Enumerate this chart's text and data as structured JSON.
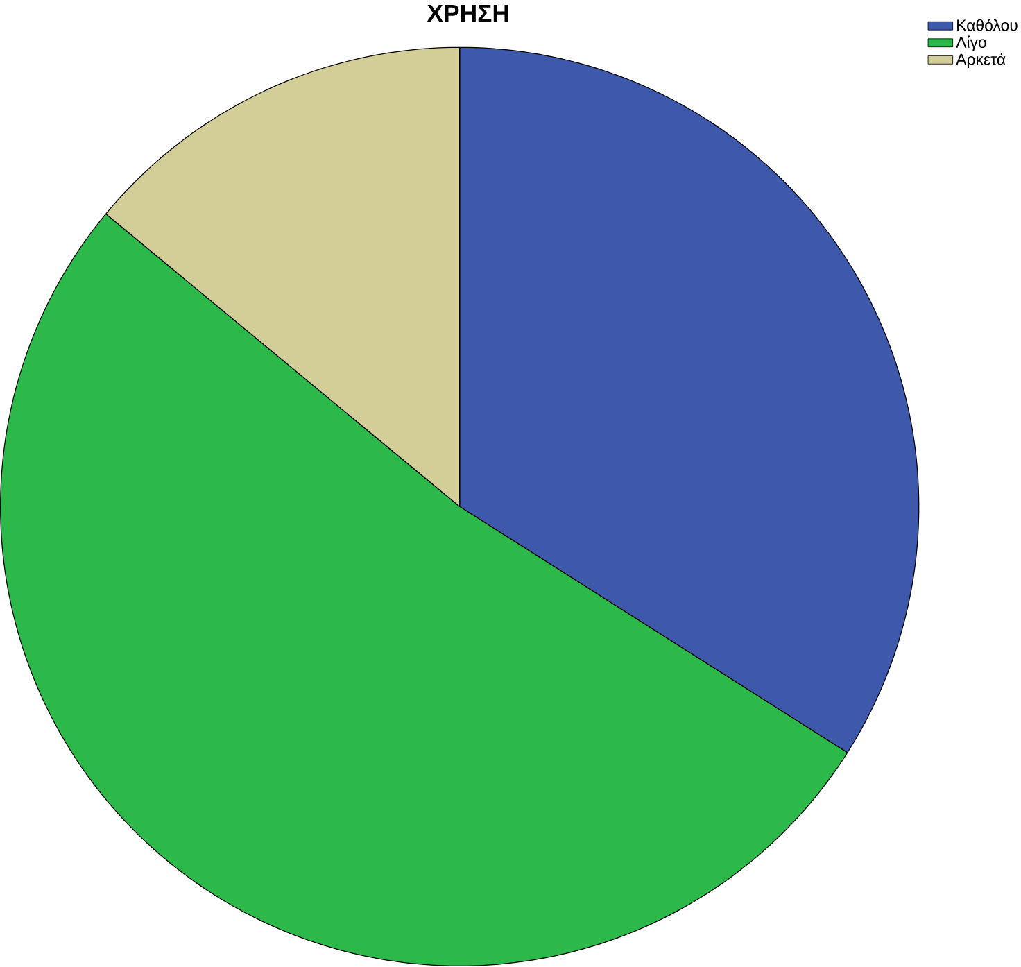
{
  "chart_data": {
    "type": "pie",
    "title": "ΧΡΗΣΗ",
    "categories": [
      "Καθόλου",
      "Λίγο",
      "Αρκετά"
    ],
    "values": [
      34,
      52,
      14
    ],
    "colors": [
      "#3e58ac",
      "#2db84a",
      "#d3ce97"
    ],
    "legend": "top right"
  }
}
